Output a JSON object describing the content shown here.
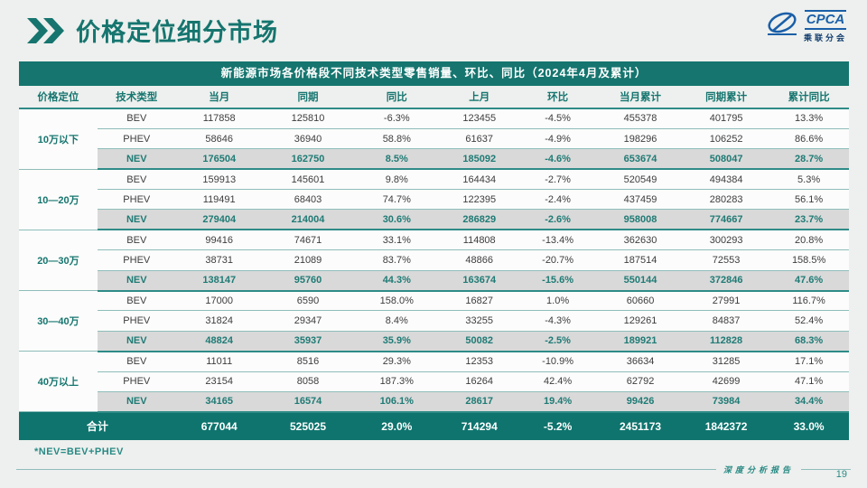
{
  "page": {
    "title": "价格定位细分市场",
    "footnote": "*NEV=BEV+PHEV",
    "footer_label": "深度分析报告",
    "page_number": "19"
  },
  "logo": {
    "name": "CPCA",
    "subtitle": "乘联分会"
  },
  "colors": {
    "teal_accent": "#16756f",
    "nev_row_bg": "#d9d9d9",
    "logo_blue": "#1a5fa8",
    "page_bg": "#edf0ee"
  },
  "chart_data": {
    "type": "table",
    "title": "新能源市场各价格段不同技术类型零售销量、环比、同比（2024年4月及累计）",
    "columns": [
      "价格定位",
      "技术类型",
      "当月",
      "同期",
      "同比",
      "上月",
      "环比",
      "当月累计",
      "同期累计",
      "累计同比"
    ],
    "groups": [
      {
        "label": "10万以下",
        "rows": [
          {
            "type": "BEV",
            "values": [
              "117858",
              "125810",
              "-6.3%",
              "123455",
              "-4.5%",
              "455378",
              "401795",
              "13.3%"
            ]
          },
          {
            "type": "PHEV",
            "values": [
              "58646",
              "36940",
              "58.8%",
              "61637",
              "-4.9%",
              "198296",
              "106252",
              "86.6%"
            ]
          },
          {
            "type": "NEV",
            "values": [
              "176504",
              "162750",
              "8.5%",
              "185092",
              "-4.6%",
              "653674",
              "508047",
              "28.7%"
            ]
          }
        ]
      },
      {
        "label": "10—20万",
        "rows": [
          {
            "type": "BEV",
            "values": [
              "159913",
              "145601",
              "9.8%",
              "164434",
              "-2.7%",
              "520549",
              "494384",
              "5.3%"
            ]
          },
          {
            "type": "PHEV",
            "values": [
              "119491",
              "68403",
              "74.7%",
              "122395",
              "-2.4%",
              "437459",
              "280283",
              "56.1%"
            ]
          },
          {
            "type": "NEV",
            "values": [
              "279404",
              "214004",
              "30.6%",
              "286829",
              "-2.6%",
              "958008",
              "774667",
              "23.7%"
            ]
          }
        ]
      },
      {
        "label": "20—30万",
        "rows": [
          {
            "type": "BEV",
            "values": [
              "99416",
              "74671",
              "33.1%",
              "114808",
              "-13.4%",
              "362630",
              "300293",
              "20.8%"
            ]
          },
          {
            "type": "PHEV",
            "values": [
              "38731",
              "21089",
              "83.7%",
              "48866",
              "-20.7%",
              "187514",
              "72553",
              "158.5%"
            ]
          },
          {
            "type": "NEV",
            "values": [
              "138147",
              "95760",
              "44.3%",
              "163674",
              "-15.6%",
              "550144",
              "372846",
              "47.6%"
            ]
          }
        ]
      },
      {
        "label": "30—40万",
        "rows": [
          {
            "type": "BEV",
            "values": [
              "17000",
              "6590",
              "158.0%",
              "16827",
              "1.0%",
              "60660",
              "27991",
              "116.7%"
            ]
          },
          {
            "type": "PHEV",
            "values": [
              "31824",
              "29347",
              "8.4%",
              "33255",
              "-4.3%",
              "129261",
              "84837",
              "52.4%"
            ]
          },
          {
            "type": "NEV",
            "values": [
              "48824",
              "35937",
              "35.9%",
              "50082",
              "-2.5%",
              "189921",
              "112828",
              "68.3%"
            ]
          }
        ]
      },
      {
        "label": "40万以上",
        "rows": [
          {
            "type": "BEV",
            "values": [
              "11011",
              "8516",
              "29.3%",
              "12353",
              "-10.9%",
              "36634",
              "31285",
              "17.1%"
            ]
          },
          {
            "type": "PHEV",
            "values": [
              "23154",
              "8058",
              "187.3%",
              "16264",
              "42.4%",
              "62792",
              "42699",
              "47.1%"
            ]
          },
          {
            "type": "NEV",
            "values": [
              "34165",
              "16574",
              "106.1%",
              "28617",
              "19.4%",
              "99426",
              "73984",
              "34.4%"
            ]
          }
        ]
      }
    ],
    "total": {
      "label": "合计",
      "values": [
        "677044",
        "525025",
        "29.0%",
        "714294",
        "-5.2%",
        "2451173",
        "1842372",
        "33.0%"
      ]
    }
  }
}
